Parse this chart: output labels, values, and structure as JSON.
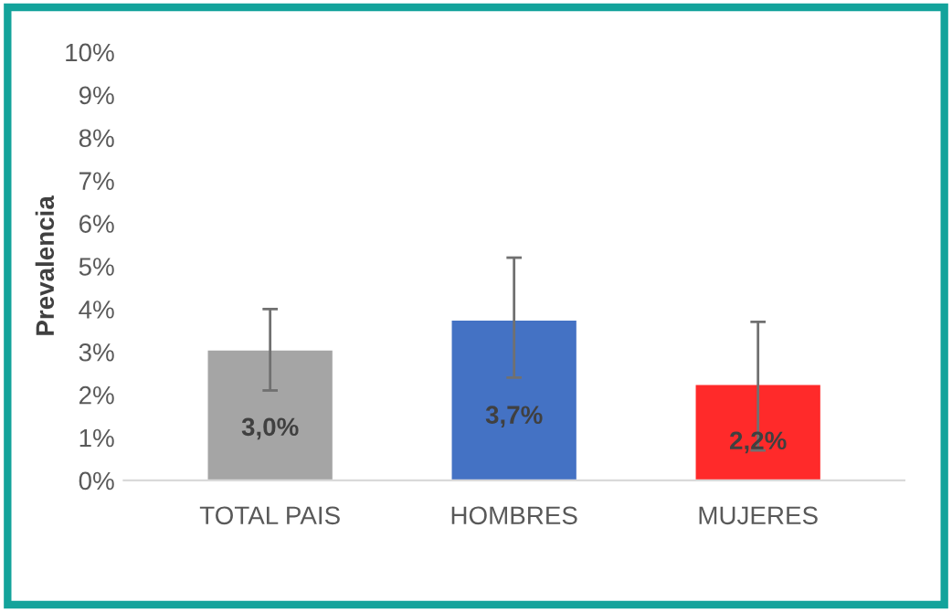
{
  "chart_data": {
    "type": "bar",
    "ylabel": "Prevalencia",
    "categories": [
      "TOTAL PAIS",
      "HOMBRES",
      "MUJERES"
    ],
    "values": [
      3.0,
      3.7,
      2.2
    ],
    "colors": [
      "#a5a5a5",
      "#4472c4",
      "#ff2a2a"
    ],
    "errors": [
      [
        2.1,
        4.0
      ],
      [
        2.4,
        5.2
      ],
      [
        0.7,
        3.7
      ]
    ],
    "value_labels": [
      "3,0%",
      "3,7%",
      "2,2%"
    ],
    "ylim": [
      0,
      10
    ],
    "yticks": [
      {
        "value": 0,
        "label": "0%"
      },
      {
        "value": 1,
        "label": "1%"
      },
      {
        "value": 2,
        "label": "2%"
      },
      {
        "value": 3,
        "label": "3%"
      },
      {
        "value": 4,
        "label": "4%"
      },
      {
        "value": 5,
        "label": "5%"
      },
      {
        "value": 6,
        "label": "6%"
      },
      {
        "value": 7,
        "label": "7%"
      },
      {
        "value": 8,
        "label": "8%"
      },
      {
        "value": 9,
        "label": "9%"
      },
      {
        "value": 10,
        "label": "10%"
      }
    ],
    "grid": false,
    "legend": false
  }
}
